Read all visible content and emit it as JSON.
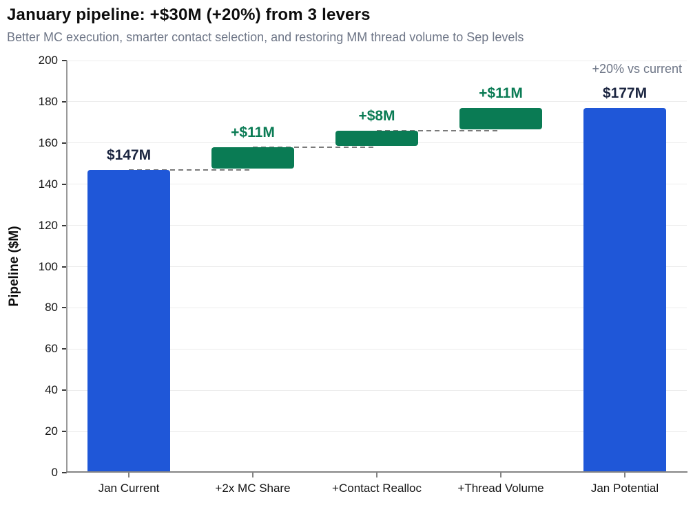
{
  "header": {
    "title": "January pipeline: +$30M (+20%) from 3 levers",
    "subtitle": "Better MC execution, smarter contact selection, and restoring MM thread volume to Sep levels"
  },
  "annotation": {
    "text": "+20% vs current"
  },
  "colors": {
    "title": "#0d0d0d",
    "subtitle": "#6e7687",
    "annotation": "#6e7687",
    "total_bar": "#1f57d8",
    "lever_bar": "#0a7b54",
    "total_label": "#1b2540",
    "lever_label": "#0a7b54",
    "gridline": "#ececec",
    "connector": "#7a7a7a",
    "left_spine": "#9a9a9a",
    "bottom_spine": "#848484",
    "y_tick_mark": "#3a3a3a",
    "x_tick_mark": "#848484",
    "tick_label": "#141414"
  },
  "chart_data": {
    "type": "bar",
    "subtype": "waterfall",
    "title": "January pipeline: +$30M (+20%) from 3 levers",
    "subtitle": "Better MC execution, smarter contact selection, and restoring MM thread volume to Sep levels",
    "ylabel": "Pipeline ($M)",
    "ylim": [
      0,
      200
    ],
    "yticks": [
      0,
      20,
      40,
      60,
      80,
      100,
      120,
      140,
      160,
      180,
      200
    ],
    "grid": true,
    "legend": false,
    "annotation": "+20% vs current",
    "categories": [
      "Jan Current",
      "+2x MC Share",
      "+Contact Realloc",
      "+Thread Volume",
      "Jan Potential"
    ],
    "bars": [
      {
        "category": "Jan Current",
        "start": 0,
        "end": 147,
        "delta": 147,
        "label": "$147M",
        "kind": "total"
      },
      {
        "category": "+2x MC Share",
        "start": 147,
        "end": 158,
        "delta": 11,
        "label": "+$11M",
        "kind": "lever"
      },
      {
        "category": "+Contact Realloc",
        "start": 158,
        "end": 166,
        "delta": 8,
        "label": "+$8M",
        "kind": "lever"
      },
      {
        "category": "+Thread Volume",
        "start": 166,
        "end": 177,
        "delta": 11,
        "label": "+$11M",
        "kind": "lever"
      },
      {
        "category": "Jan Potential",
        "start": 0,
        "end": 177,
        "delta": 177,
        "label": "$177M",
        "kind": "total"
      }
    ],
    "connector_levels": [
      147,
      158,
      166
    ]
  }
}
